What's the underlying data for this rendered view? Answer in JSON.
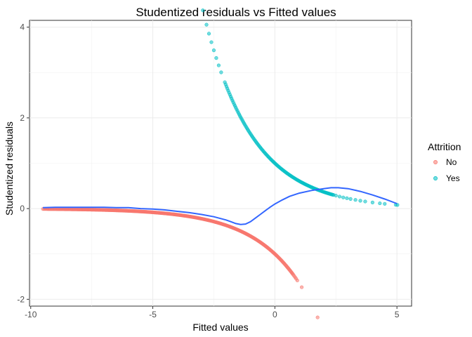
{
  "chart_data": {
    "type": "scatter",
    "title": "Studentized residuals vs Fitted values",
    "xlabel": "Fitted values",
    "ylabel": "Studentized residuals",
    "xlim": [
      -10.05,
      5.6
    ],
    "ylim": [
      -2.15,
      4.15
    ],
    "x_ticks": [
      -10,
      -5,
      0,
      5
    ],
    "x_tick_labels": [
      "-10",
      "-5",
      "0",
      "5"
    ],
    "y_ticks": [
      -2,
      0,
      2,
      4
    ],
    "y_tick_labels": [
      "-2",
      "0",
      "2",
      "4"
    ],
    "grid": true,
    "legend": {
      "title": "Attrition",
      "position": "right",
      "entries": [
        {
          "label": "No",
          "color": "#f8766d"
        },
        {
          "label": "Yes",
          "color": "#00bfc4"
        }
      ]
    },
    "series": [
      {
        "name": "No",
        "color": "#f8766d",
        "curve": "no",
        "x_from": -9.5,
        "x_to": 0.7,
        "count": 340,
        "extra_x": [
          0.72,
          0.75,
          0.79,
          0.83,
          0.87,
          0.92,
          1.1,
          1.75
        ]
      },
      {
        "name": "Yes",
        "color": "#00bfc4",
        "curve": "yes",
        "x": [
          -7.5,
          -6.45,
          -6.15,
          -5.85,
          -5.6,
          -5.4,
          -5.2,
          -5.05,
          -4.95,
          -4.8,
          -4.55,
          -4.35,
          -4.0,
          -3.85,
          -3.7,
          -3.6,
          -3.5,
          -3.3,
          -3.2,
          -3.1,
          -2.95,
          -2.8,
          -2.7,
          -2.6,
          -2.5,
          -2.4,
          -2.3,
          -2.2
        ],
        "dense_x_from": -2.05,
        "dense_x_to": 2.4,
        "dense_count": 130,
        "extra_x": [
          2.5,
          2.65,
          2.8,
          2.95,
          3.1,
          3.3,
          3.5,
          3.7,
          4.0,
          4.3,
          4.5,
          4.95,
          5.02
        ]
      }
    ],
    "smooth": {
      "color": "#3366ff",
      "x": [
        -9.5,
        -9,
        -8.5,
        -8,
        -7.5,
        -7,
        -6.5,
        -6,
        -5.5,
        -5,
        -4.5,
        -4,
        -3.5,
        -3,
        -2.5,
        -2,
        -1.8,
        -1.6,
        -1.4,
        -1.2,
        -1,
        -0.8,
        -0.6,
        -0.4,
        -0.2,
        0,
        0.3,
        0.6,
        1,
        1.5,
        2,
        2.3,
        2.6,
        3,
        3.5,
        4,
        4.5,
        5
      ],
      "y": [
        0.02,
        0.03,
        0.03,
        0.03,
        0.03,
        0.03,
        0.02,
        0.02,
        0.0,
        -0.01,
        -0.03,
        -0.06,
        -0.09,
        -0.13,
        -0.18,
        -0.25,
        -0.29,
        -0.33,
        -0.35,
        -0.34,
        -0.29,
        -0.21,
        -0.13,
        -0.05,
        0.03,
        0.1,
        0.19,
        0.27,
        0.34,
        0.4,
        0.44,
        0.46,
        0.46,
        0.44,
        0.38,
        0.3,
        0.21,
        0.11
      ]
    }
  }
}
